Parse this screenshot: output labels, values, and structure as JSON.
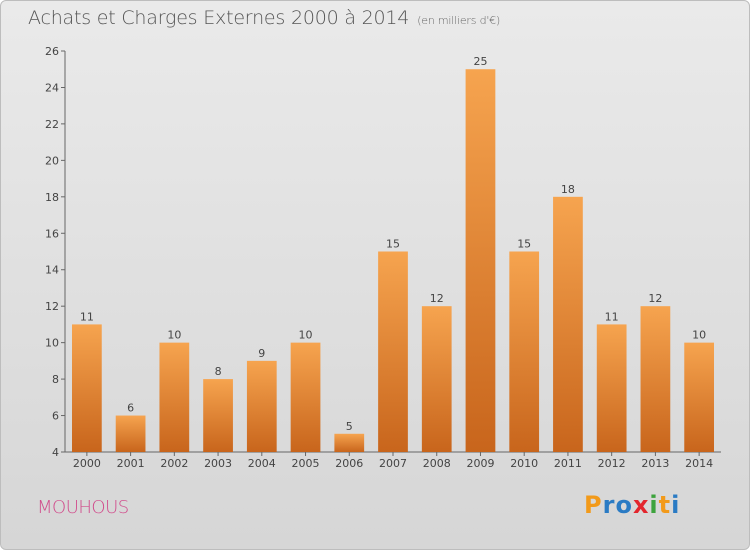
{
  "header": {
    "title": "Achats et Charges Externes 2000 à 2014",
    "unit_note": "(en milliers d'€)"
  },
  "location": "MOUHOUS",
  "brand": {
    "letters": [
      "P",
      "r",
      "o",
      "x",
      "i",
      "t",
      "i"
    ],
    "colors": [
      "#f29a1a",
      "#2a7bc4",
      "#2a7bc4",
      "#e3262d",
      "#3da33d",
      "#f29a1a",
      "#2a7bc4"
    ]
  },
  "colors": {
    "bar_dark": "#c8651c",
    "bar_light": "#f6a44f",
    "background": "#e0e0e0"
  },
  "chart_data": {
    "type": "bar",
    "categories": [
      "2000",
      "2001",
      "2002",
      "2003",
      "2004",
      "2005",
      "2006",
      "2007",
      "2008",
      "2009",
      "2010",
      "2011",
      "2012",
      "2013",
      "2014"
    ],
    "values": [
      11,
      6,
      10,
      8,
      9,
      10,
      5,
      15,
      12,
      25,
      15,
      18,
      11,
      12,
      10
    ],
    "title": "Achats et Charges Externes 2000 à 2014",
    "subtitle": "(en milliers d'€)",
    "xlabel": "",
    "ylabel": "",
    "ylim": [
      4,
      26
    ],
    "yticks": [
      4,
      6,
      8,
      10,
      12,
      14,
      16,
      18,
      20,
      22,
      24,
      26
    ],
    "grid": false,
    "data_labels": true
  }
}
